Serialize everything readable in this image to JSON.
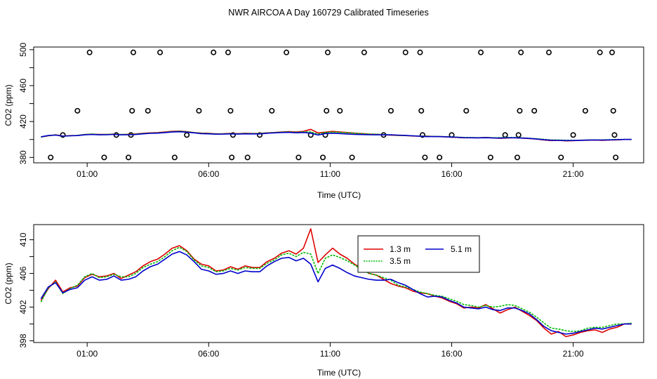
{
  "title": "NWR AIRCOA A  Day 160729  Calibrated Timeseries",
  "colors": {
    "s1": "#dd0000",
    "s2": "#00bb00",
    "s3": "#0000cc",
    "axis": "#000000"
  },
  "chart_data": [
    {
      "type": "line",
      "title": "NWR AIRCOA A  Day 160729  Calibrated Timeseries",
      "xlabel": "Time (UTC)",
      "ylabel": "CO2 (ppm)",
      "xlim": [
        -1.2,
        23.9
      ],
      "ylim": [
        374,
        503
      ],
      "x_ticks": [
        1,
        6,
        11,
        16,
        21
      ],
      "x_tick_labels": [
        "01:00",
        "06:00",
        "11:00",
        "16:00",
        "21:00"
      ],
      "y_ticks": [
        380,
        420,
        460,
        500
      ],
      "y_tick_labels": [
        "380",
        "420",
        "460",
        "500"
      ],
      "y_minor_ticks": [
        400,
        440,
        480
      ],
      "series_ref": "series of panel 2 (same timeseries on a wider range)",
      "reference_points": {
        "type": "scatter",
        "marker": "open-circle",
        "points": [
          [
            -0.5,
            380
          ],
          [
            0.0,
            405
          ],
          [
            0.6,
            432
          ],
          [
            1.1,
            497
          ],
          [
            1.7,
            380
          ],
          [
            2.2,
            405
          ],
          [
            2.7,
            380
          ],
          [
            2.8,
            405
          ],
          [
            2.85,
            432
          ],
          [
            2.9,
            497
          ],
          [
            3.5,
            432
          ],
          [
            4.0,
            497
          ],
          [
            4.6,
            380
          ],
          [
            5.1,
            405
          ],
          [
            5.6,
            432
          ],
          [
            6.2,
            497
          ],
          [
            6.8,
            497
          ],
          [
            6.9,
            432
          ],
          [
            6.95,
            380
          ],
          [
            7.0,
            405
          ],
          [
            7.6,
            380
          ],
          [
            8.1,
            405
          ],
          [
            8.6,
            432
          ],
          [
            9.2,
            497
          ],
          [
            9.7,
            380
          ],
          [
            10.2,
            405
          ],
          [
            10.7,
            380
          ],
          [
            10.8,
            405
          ],
          [
            10.85,
            432
          ],
          [
            10.9,
            497
          ],
          [
            11.4,
            432
          ],
          [
            11.9,
            380
          ],
          [
            12.4,
            497
          ],
          [
            13.2,
            405
          ],
          [
            13.5,
            432
          ],
          [
            14.1,
            497
          ],
          [
            14.7,
            497
          ],
          [
            14.75,
            432
          ],
          [
            14.8,
            405
          ],
          [
            14.9,
            380
          ],
          [
            15.5,
            380
          ],
          [
            16.0,
            405
          ],
          [
            16.6,
            432
          ],
          [
            17.2,
            497
          ],
          [
            17.6,
            380
          ],
          [
            18.2,
            405
          ],
          [
            18.7,
            380
          ],
          [
            18.75,
            405
          ],
          [
            18.8,
            432
          ],
          [
            18.85,
            497
          ],
          [
            19.4,
            432
          ],
          [
            20.0,
            497
          ],
          [
            20.5,
            380
          ],
          [
            21.0,
            405
          ],
          [
            21.5,
            432
          ],
          [
            22.1,
            497
          ],
          [
            22.6,
            497
          ],
          [
            22.65,
            432
          ],
          [
            22.7,
            405
          ],
          [
            22.75,
            380
          ]
        ]
      }
    },
    {
      "type": "line",
      "title": "",
      "xlabel": "Time (UTC)",
      "ylabel": "CO2 (ppm)",
      "xlim": [
        -1.2,
        23.9
      ],
      "ylim": [
        397.8,
        411.8
      ],
      "x_ticks": [
        1,
        6,
        11,
        16,
        21
      ],
      "x_tick_labels": [
        "01:00",
        "06:00",
        "11:00",
        "16:00",
        "21:00"
      ],
      "y_ticks": [
        398,
        402,
        406,
        410
      ],
      "y_tick_labels": [
        "398",
        "402",
        "406",
        "410"
      ],
      "y_minor_ticks": [
        400,
        404,
        408
      ],
      "legend": {
        "placement": "top-center",
        "entries": [
          "1.3 m",
          "5.1 m",
          "3.5 m"
        ]
      },
      "x": [
        -0.9,
        -0.6,
        -0.3,
        0.0,
        0.3,
        0.6,
        0.9,
        1.2,
        1.5,
        1.8,
        2.1,
        2.4,
        2.7,
        3.0,
        3.3,
        3.6,
        3.9,
        4.2,
        4.5,
        4.8,
        5.1,
        5.4,
        5.7,
        6.0,
        6.3,
        6.6,
        6.9,
        7.2,
        7.5,
        7.8,
        8.1,
        8.4,
        8.7,
        9.0,
        9.3,
        9.6,
        9.9,
        10.2,
        10.5,
        10.8,
        11.1,
        11.4,
        11.7,
        12.0,
        12.3,
        12.6,
        12.9,
        13.2,
        13.5,
        13.8,
        14.1,
        14.4,
        14.7,
        15.0,
        15.3,
        15.6,
        15.9,
        16.2,
        16.5,
        16.8,
        17.1,
        17.4,
        17.7,
        18.0,
        18.3,
        18.6,
        18.9,
        19.2,
        19.5,
        19.8,
        20.1,
        20.4,
        20.7,
        21.0,
        21.3,
        21.6,
        21.9,
        22.2,
        22.5,
        22.8,
        23.1,
        23.4
      ],
      "series": [
        {
          "name": "1.3 m",
          "color": "#dd0000",
          "values": [
            402.8,
            404.2,
            405.2,
            403.8,
            404.3,
            404.5,
            405.5,
            405.9,
            405.6,
            405.7,
            406.0,
            405.4,
            405.8,
            406.2,
            406.9,
            407.4,
            407.7,
            408.3,
            409.0,
            409.3,
            408.7,
            407.7,
            407.1,
            406.9,
            406.3,
            406.4,
            406.8,
            406.5,
            406.9,
            406.7,
            406.7,
            407.4,
            407.8,
            408.4,
            408.7,
            408.3,
            409.0,
            411.3,
            407.3,
            408.2,
            409.0,
            408.3,
            407.8,
            407.1,
            406.6,
            406.0,
            405.8,
            405.3,
            404.8,
            404.5,
            404.3,
            403.9,
            403.7,
            403.6,
            403.3,
            403.1,
            402.7,
            402.4,
            401.9,
            402.0,
            401.9,
            402.3,
            401.8,
            401.3,
            401.7,
            402.0,
            401.5,
            401.0,
            400.4,
            399.5,
            398.8,
            399.1,
            398.5,
            398.7,
            399.0,
            399.2,
            399.3,
            399.0,
            399.4,
            399.6,
            400.0,
            400.0
          ]
        },
        {
          "name": "3.5 m",
          "color": "#00bb00",
          "values": [
            402.6,
            404.3,
            405.0,
            403.6,
            404.2,
            404.6,
            405.6,
            406.0,
            405.5,
            405.6,
            405.9,
            405.6,
            405.6,
            406.0,
            406.7,
            407.1,
            407.4,
            408.0,
            408.7,
            409.1,
            408.6,
            407.6,
            406.9,
            406.7,
            406.2,
            406.3,
            406.6,
            406.4,
            406.7,
            406.6,
            406.6,
            407.2,
            407.6,
            408.2,
            408.4,
            408.0,
            408.5,
            408.3,
            406.0,
            407.8,
            408.2,
            407.9,
            407.5,
            407.0,
            406.5,
            406.0,
            405.8,
            405.5,
            405.2,
            404.6,
            404.4,
            404.1,
            403.8,
            403.6,
            403.4,
            403.3,
            403.0,
            402.7,
            402.3,
            402.2,
            402.0,
            402.2,
            402.0,
            402.1,
            402.3,
            402.2,
            401.8,
            401.4,
            400.8,
            400.1,
            399.5,
            399.4,
            399.2,
            399.1,
            399.2,
            399.5,
            399.6,
            399.6,
            399.8,
            400.0,
            400.0,
            400.1
          ]
        },
        {
          "name": "5.1 m",
          "color": "#0000cc",
          "values": [
            403.0,
            404.4,
            404.9,
            403.7,
            404.1,
            404.3,
            405.2,
            405.6,
            405.2,
            405.3,
            405.7,
            405.2,
            405.3,
            405.6,
            406.3,
            406.8,
            407.1,
            407.7,
            408.3,
            408.6,
            408.2,
            407.4,
            406.5,
            406.3,
            405.9,
            406.0,
            406.3,
            406.0,
            406.3,
            406.2,
            406.2,
            406.9,
            407.4,
            407.8,
            407.9,
            407.5,
            407.8,
            407.1,
            405.0,
            406.6,
            407.0,
            406.6,
            406.1,
            405.7,
            405.5,
            405.3,
            405.2,
            405.2,
            405.3,
            404.9,
            404.6,
            404.1,
            403.6,
            403.2,
            403.3,
            403.2,
            402.8,
            402.5,
            402.0,
            401.9,
            401.8,
            402.0,
            401.7,
            401.6,
            401.9,
            401.9,
            401.6,
            401.2,
            400.5,
            399.7,
            399.2,
            399.0,
            398.8,
            398.9,
            399.1,
            399.3,
            399.5,
            399.4,
            399.6,
            399.8,
            400.0,
            400.0
          ]
        }
      ]
    }
  ]
}
